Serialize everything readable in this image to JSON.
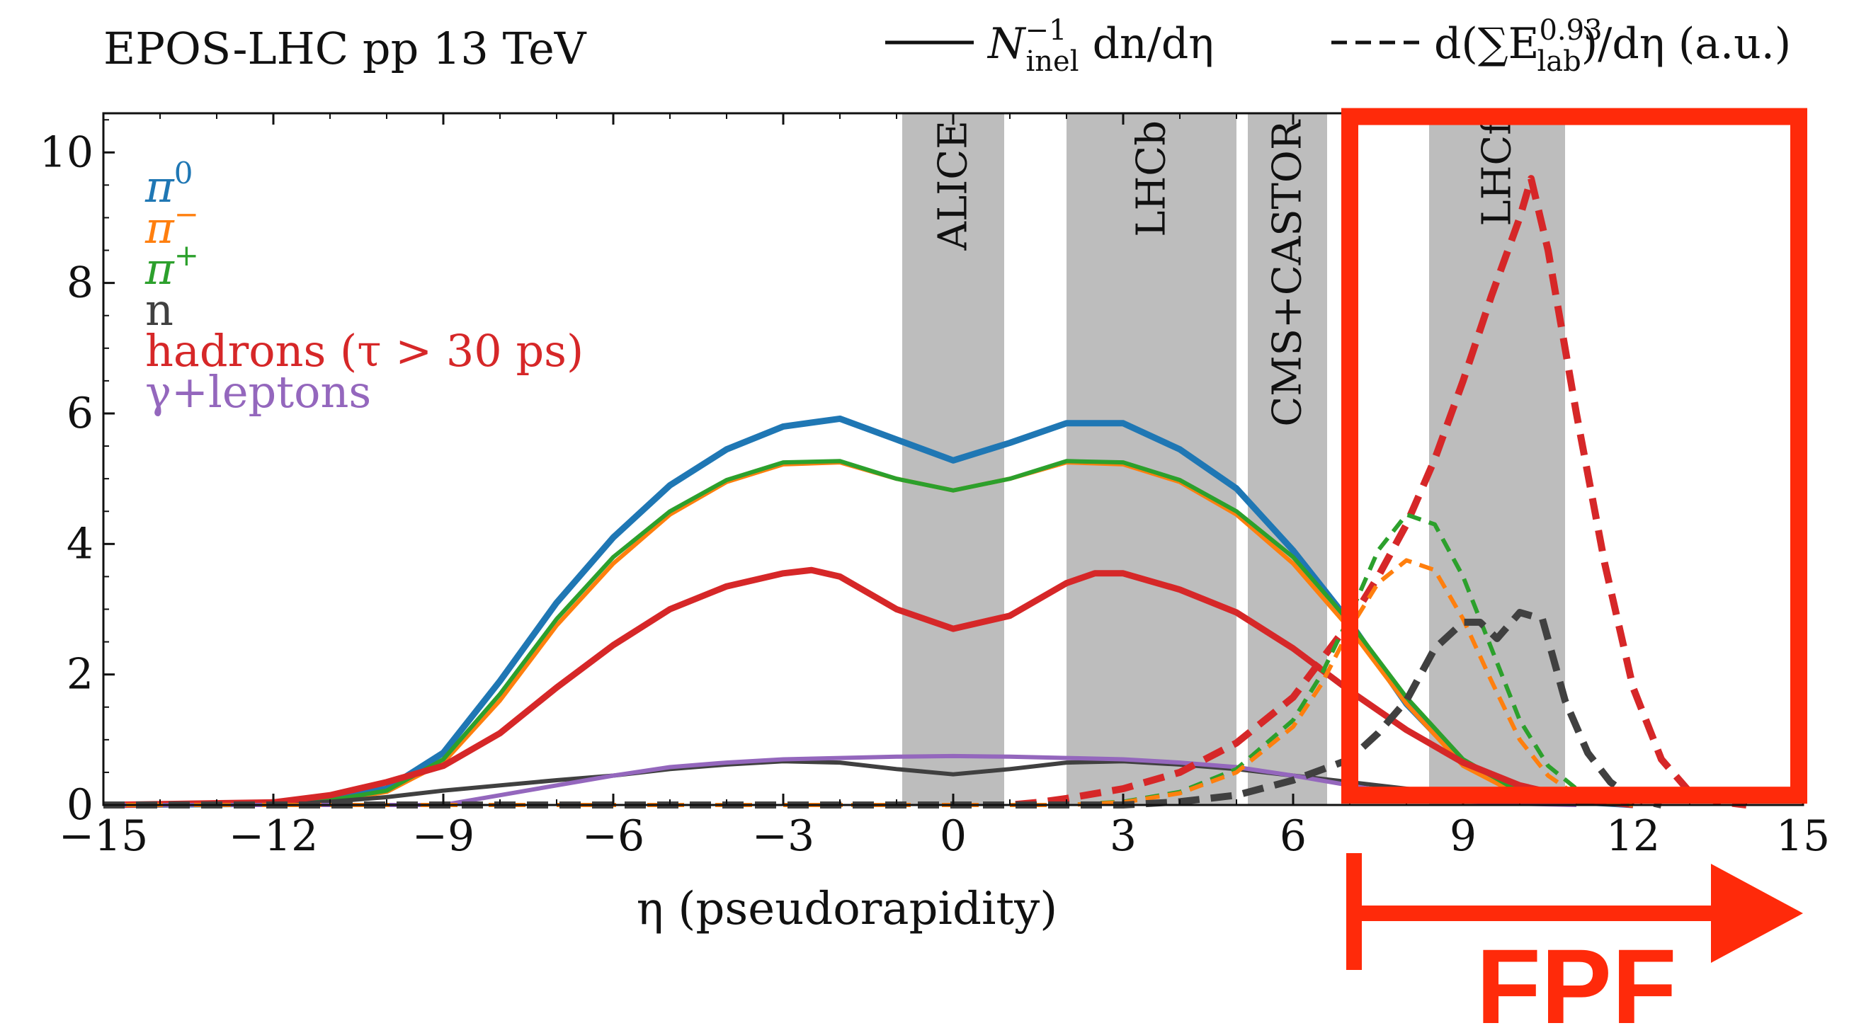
{
  "chart_data": {
    "type": "line",
    "title": "EPOS-LHC pp 13 TeV",
    "xlabel": "η (pseudorapidity)",
    "ylabel": "",
    "xlim": [
      -15,
      15
    ],
    "ylim": [
      0,
      10.6
    ],
    "xticks": [
      -15,
      -12,
      -9,
      -6,
      -3,
      0,
      3,
      6,
      9,
      12,
      15
    ],
    "xtick_labels": [
      "−15",
      "−12",
      "−9",
      "−6",
      "−3",
      "0",
      "3",
      "6",
      "9",
      "12",
      "15"
    ],
    "yticks": [
      0,
      2,
      4,
      6,
      8,
      10
    ],
    "ytick_labels": [
      "0",
      "2",
      "4",
      "6",
      "8",
      "10"
    ],
    "grid": false,
    "line_styles": [
      {
        "style": "solid",
        "label_main": "N",
        "label_sup": "−1",
        "label_sub": "inel",
        "label_rest": " dn/dη"
      },
      {
        "style": "dashed",
        "label_main": "d(∑E",
        "label_sup": "0.93",
        "label_sub": "lab",
        "label_rest": ")/dη (a.u.)"
      }
    ],
    "bands": [
      {
        "label": "ALICE",
        "x0": -0.9,
        "x1": 0.9
      },
      {
        "label": "LHCb",
        "x0": 2.0,
        "x1": 5.0
      },
      {
        "label": "CMS+CASTOR",
        "x0": 5.2,
        "x1": 6.6
      },
      {
        "label": "LHCf",
        "x0": 8.4,
        "x1": 10.8
      }
    ],
    "series": [
      {
        "name": "π⁰",
        "color": "#1f77b4",
        "style": "solid",
        "points": [
          [
            -15,
            0
          ],
          [
            -12,
            0.02
          ],
          [
            -11,
            0.08
          ],
          [
            -10,
            0.25
          ],
          [
            -9,
            0.8
          ],
          [
            -8,
            1.9
          ],
          [
            -7,
            3.1
          ],
          [
            -6,
            4.1
          ],
          [
            -5,
            4.9
          ],
          [
            -4,
            5.45
          ],
          [
            -3,
            5.8
          ],
          [
            -2,
            5.92
          ],
          [
            -1,
            5.6
          ],
          [
            0,
            5.28
          ],
          [
            1,
            5.55
          ],
          [
            2,
            5.85
          ],
          [
            3,
            5.85
          ],
          [
            4,
            5.45
          ],
          [
            5,
            4.85
          ],
          [
            6,
            3.9
          ],
          [
            7,
            2.8
          ],
          [
            8,
            1.55
          ],
          [
            9,
            0.65
          ],
          [
            10,
            0.2
          ],
          [
            11,
            0.05
          ],
          [
            12,
            0
          ]
        ]
      },
      {
        "name": "π⁻",
        "color": "#ff7f0e",
        "style": "solid",
        "points": [
          [
            -15,
            0
          ],
          [
            -12,
            0.02
          ],
          [
            -11,
            0.06
          ],
          [
            -10,
            0.2
          ],
          [
            -9,
            0.65
          ],
          [
            -8,
            1.6
          ],
          [
            -7,
            2.75
          ],
          [
            -6,
            3.7
          ],
          [
            -5,
            4.45
          ],
          [
            -4,
            4.95
          ],
          [
            -3,
            5.22
          ],
          [
            -2,
            5.25
          ],
          [
            -1,
            5.0
          ],
          [
            0,
            4.82
          ],
          [
            1,
            5.0
          ],
          [
            2,
            5.25
          ],
          [
            3,
            5.22
          ],
          [
            4,
            4.95
          ],
          [
            5,
            4.45
          ],
          [
            6,
            3.7
          ],
          [
            7,
            2.7
          ],
          [
            8,
            1.55
          ],
          [
            9,
            0.6
          ],
          [
            10,
            0.15
          ],
          [
            11,
            0.03
          ],
          [
            12,
            0
          ]
        ]
      },
      {
        "name": "π⁺",
        "color": "#2ca02c",
        "style": "solid",
        "points": [
          [
            -15,
            0
          ],
          [
            -12,
            0.02
          ],
          [
            -11,
            0.07
          ],
          [
            -10,
            0.22
          ],
          [
            -9,
            0.7
          ],
          [
            -8,
            1.7
          ],
          [
            -7,
            2.85
          ],
          [
            -6,
            3.8
          ],
          [
            -5,
            4.5
          ],
          [
            -4,
            4.98
          ],
          [
            -3,
            5.25
          ],
          [
            -2,
            5.27
          ],
          [
            -1,
            5.0
          ],
          [
            0,
            4.82
          ],
          [
            1,
            5.0
          ],
          [
            2,
            5.27
          ],
          [
            3,
            5.25
          ],
          [
            4,
            4.98
          ],
          [
            5,
            4.5
          ],
          [
            6,
            3.8
          ],
          [
            7,
            2.8
          ],
          [
            8,
            1.65
          ],
          [
            9,
            0.7
          ],
          [
            10,
            0.2
          ],
          [
            11,
            0.05
          ],
          [
            12,
            0
          ]
        ]
      },
      {
        "name": "n",
        "color": "#404040",
        "style": "solid",
        "points": [
          [
            -15,
            0
          ],
          [
            -12,
            0
          ],
          [
            -11,
            0.05
          ],
          [
            -10,
            0.12
          ],
          [
            -9,
            0.22
          ],
          [
            -8,
            0.3
          ],
          [
            -7,
            0.38
          ],
          [
            -6,
            0.45
          ],
          [
            -5,
            0.55
          ],
          [
            -4,
            0.62
          ],
          [
            -3,
            0.67
          ],
          [
            -2,
            0.65
          ],
          [
            -1,
            0.55
          ],
          [
            0,
            0.47
          ],
          [
            1,
            0.55
          ],
          [
            2,
            0.65
          ],
          [
            3,
            0.67
          ],
          [
            4,
            0.62
          ],
          [
            5,
            0.55
          ],
          [
            6,
            0.45
          ],
          [
            7,
            0.35
          ],
          [
            8,
            0.25
          ],
          [
            9,
            0.15
          ],
          [
            10,
            0.08
          ],
          [
            11,
            0.03
          ],
          [
            12,
            0
          ]
        ]
      },
      {
        "name": "hadrons (τ > 30 ps)",
        "color": "#d62728",
        "style": "solid",
        "points": [
          [
            -15,
            0
          ],
          [
            -12,
            0.04
          ],
          [
            -11,
            0.15
          ],
          [
            -10,
            0.35
          ],
          [
            -9,
            0.6
          ],
          [
            -8,
            1.1
          ],
          [
            -7,
            1.8
          ],
          [
            -6,
            2.45
          ],
          [
            -5,
            3.0
          ],
          [
            -4,
            3.35
          ],
          [
            -3,
            3.55
          ],
          [
            -2.5,
            3.6
          ],
          [
            -2,
            3.5
          ],
          [
            -1,
            3.0
          ],
          [
            0,
            2.7
          ],
          [
            1,
            2.9
          ],
          [
            2,
            3.4
          ],
          [
            2.5,
            3.55
          ],
          [
            3,
            3.55
          ],
          [
            4,
            3.3
          ],
          [
            5,
            2.95
          ],
          [
            6,
            2.4
          ],
          [
            7,
            1.75
          ],
          [
            8,
            1.15
          ],
          [
            9,
            0.65
          ],
          [
            10,
            0.3
          ],
          [
            11,
            0.1
          ],
          [
            12,
            0
          ]
        ]
      },
      {
        "name": "γ+leptons",
        "color": "#9467bd",
        "style": "solid",
        "points": [
          [
            -15,
            0
          ],
          [
            -9,
            0
          ],
          [
            -8,
            0.15
          ],
          [
            -7,
            0.3
          ],
          [
            -6,
            0.45
          ],
          [
            -5,
            0.58
          ],
          [
            -4,
            0.65
          ],
          [
            -3,
            0.7
          ],
          [
            -2,
            0.72
          ],
          [
            -1,
            0.74
          ],
          [
            0,
            0.75
          ],
          [
            1,
            0.74
          ],
          [
            2,
            0.72
          ],
          [
            3,
            0.7
          ],
          [
            4,
            0.65
          ],
          [
            5,
            0.58
          ],
          [
            6,
            0.45
          ],
          [
            7,
            0.3
          ],
          [
            8,
            0.15
          ],
          [
            9,
            0.06
          ],
          [
            10,
            0.02
          ],
          [
            11,
            0
          ]
        ]
      },
      {
        "name": "hadrons (τ > 30 ps)",
        "color": "#d62728",
        "style": "dashed",
        "points": [
          [
            -15,
            0
          ],
          [
            1,
            0
          ],
          [
            1.5,
            0.04
          ],
          [
            2,
            0.1
          ],
          [
            3,
            0.25
          ],
          [
            4,
            0.5
          ],
          [
            5,
            0.95
          ],
          [
            6,
            1.65
          ],
          [
            7,
            2.8
          ],
          [
            7.5,
            3.5
          ],
          [
            8,
            4.3
          ],
          [
            8.5,
            5.3
          ],
          [
            9,
            6.5
          ],
          [
            9.5,
            7.8
          ],
          [
            10,
            9.0
          ],
          [
            10.2,
            9.6
          ],
          [
            10.5,
            8.5
          ],
          [
            11,
            6.0
          ],
          [
            11.5,
            3.7
          ],
          [
            12,
            1.8
          ],
          [
            12.5,
            0.7
          ],
          [
            13,
            0.2
          ],
          [
            13.5,
            0.05
          ],
          [
            14,
            0
          ]
        ]
      },
      {
        "name": "π⁺",
        "color": "#2ca02c",
        "style": "dashed",
        "points": [
          [
            -15,
            0
          ],
          [
            2,
            0
          ],
          [
            3,
            0.05
          ],
          [
            4,
            0.2
          ],
          [
            5,
            0.55
          ],
          [
            6,
            1.3
          ],
          [
            6.5,
            2.0
          ],
          [
            7,
            2.9
          ],
          [
            7.5,
            3.9
          ],
          [
            8,
            4.45
          ],
          [
            8.5,
            4.3
          ],
          [
            9,
            3.5
          ],
          [
            9.5,
            2.4
          ],
          [
            10,
            1.3
          ],
          [
            10.5,
            0.6
          ],
          [
            11,
            0.25
          ],
          [
            11.5,
            0.08
          ],
          [
            12,
            0
          ]
        ]
      },
      {
        "name": "π⁻",
        "color": "#ff7f0e",
        "style": "dashed",
        "points": [
          [
            -15,
            0
          ],
          [
            2,
            0
          ],
          [
            3,
            0.04
          ],
          [
            4,
            0.18
          ],
          [
            5,
            0.5
          ],
          [
            6,
            1.2
          ],
          [
            6.5,
            1.85
          ],
          [
            7,
            2.7
          ],
          [
            7.5,
            3.4
          ],
          [
            8,
            3.75
          ],
          [
            8.5,
            3.6
          ],
          [
            9,
            2.85
          ],
          [
            9.5,
            1.9
          ],
          [
            10,
            1.0
          ],
          [
            10.5,
            0.45
          ],
          [
            11,
            0.15
          ],
          [
            11.5,
            0.05
          ],
          [
            12,
            0
          ]
        ]
      },
      {
        "name": "n",
        "color": "#404040",
        "style": "dashed",
        "points": [
          [
            -15,
            0
          ],
          [
            3,
            0
          ],
          [
            4,
            0.05
          ],
          [
            5,
            0.15
          ],
          [
            6,
            0.38
          ],
          [
            7,
            0.7
          ],
          [
            7.5,
            1.1
          ],
          [
            8,
            1.6
          ],
          [
            8.5,
            2.4
          ],
          [
            9,
            2.8
          ],
          [
            9.3,
            2.8
          ],
          [
            9.6,
            2.55
          ],
          [
            10,
            2.95
          ],
          [
            10.4,
            2.85
          ],
          [
            10.8,
            1.6
          ],
          [
            11.2,
            0.8
          ],
          [
            11.6,
            0.35
          ],
          [
            12,
            0.1
          ],
          [
            12.5,
            0
          ]
        ]
      }
    ],
    "legend": {
      "placement": "top-left",
      "entries": [
        {
          "base": "π",
          "sup": "0",
          "color": "#1f77b4"
        },
        {
          "base": "π",
          "sup": "−",
          "color": "#ff7f0e"
        },
        {
          "base": "π",
          "sup": "+",
          "color": "#2ca02c"
        },
        {
          "base": "n",
          "sup": "",
          "color": "#404040"
        },
        {
          "base": "hadrons (τ > 30 ps)",
          "sup": "",
          "color": "#d62728"
        },
        {
          "base": "γ+leptons",
          "sup": "",
          "color": "#9467bd"
        }
      ]
    },
    "annotation": {
      "label": "FPF",
      "color": "#ff2a0a",
      "box_x": [
        7.0,
        15.0
      ],
      "box_y": [
        0.15,
        10.55
      ],
      "arrow_x": [
        7.0,
        15.0
      ]
    }
  }
}
